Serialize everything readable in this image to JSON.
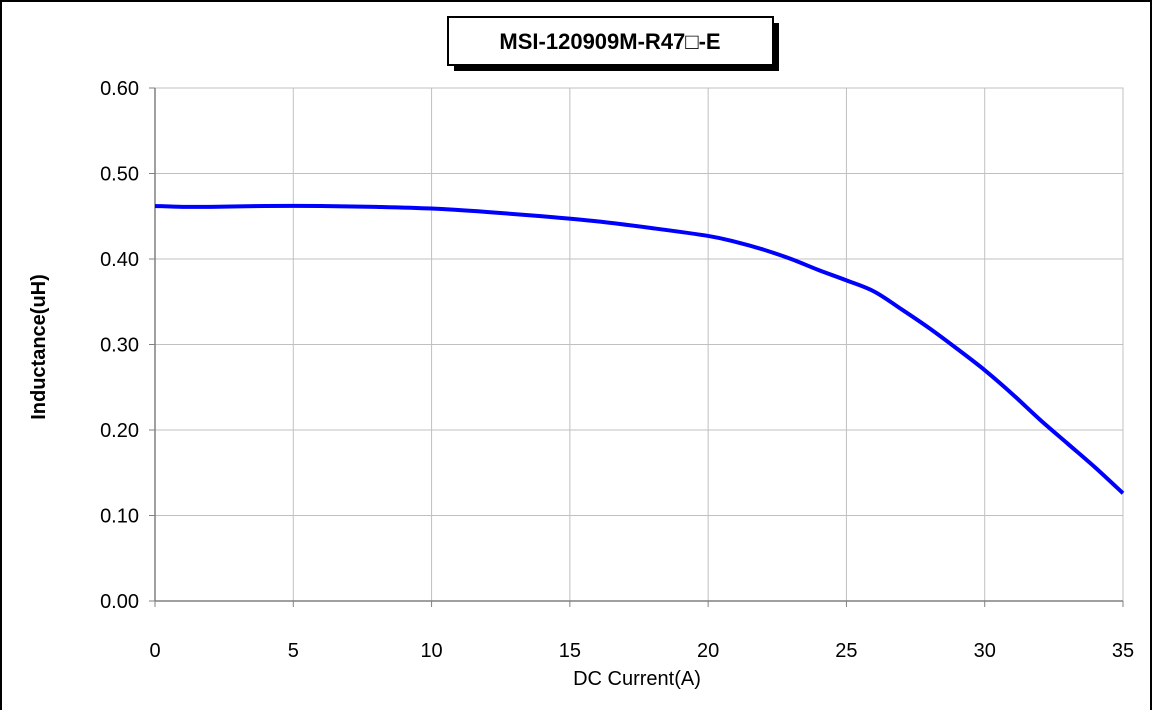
{
  "chart_data": {
    "type": "line",
    "title": "MSI-120909M-R47□-E",
    "xlabel": "DC Current(A)",
    "ylabel": "Inductance(uH)",
    "xlim": [
      0,
      35
    ],
    "ylim": [
      0,
      0.6
    ],
    "x_ticks": [
      "0",
      "5",
      "10",
      "15",
      "20",
      "25",
      "30",
      "35"
    ],
    "x_tick_values": [
      0,
      5,
      10,
      15,
      20,
      25,
      30,
      35
    ],
    "y_ticks": [
      "0.00",
      "0.10",
      "0.20",
      "0.30",
      "0.40",
      "0.50",
      "0.60"
    ],
    "y_tick_values": [
      0,
      0.1,
      0.2,
      0.3,
      0.4,
      0.5,
      0.6
    ],
    "grid": true,
    "legend": false,
    "series": [
      {
        "color": "#0000ff",
        "x": [
          0,
          1,
          2,
          4,
          6,
          8,
          10,
          12,
          14,
          16,
          18,
          20,
          21,
          22,
          23,
          24,
          25,
          26,
          27,
          28,
          29,
          30,
          31,
          32,
          33,
          34,
          35
        ],
        "y": [
          0.462,
          0.461,
          0.461,
          0.462,
          0.462,
          0.461,
          0.459,
          0.455,
          0.45,
          0.444,
          0.436,
          0.427,
          0.42,
          0.411,
          0.4,
          0.387,
          0.375,
          0.362,
          0.341,
          0.319,
          0.295,
          0.27,
          0.242,
          0.212,
          0.184,
          0.156,
          0.126
        ]
      }
    ]
  },
  "colors": {
    "line": "#0000ff",
    "grid": "#c0c0c0",
    "axis": "#808080",
    "frame": "#000000"
  }
}
